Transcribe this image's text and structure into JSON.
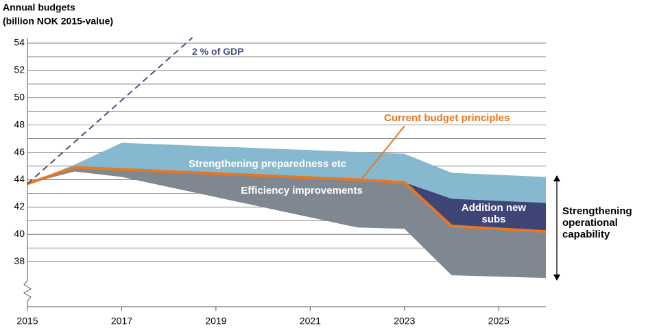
{
  "chart_data": {
    "type": "area",
    "title": "Annual budgets",
    "subtitle": "(billion NOK 2015-value)",
    "x": [
      2015,
      2016,
      2017,
      2018,
      2019,
      2020,
      2021,
      2022,
      2023,
      2024,
      2025,
      2026
    ],
    "xlim": [
      2015,
      2026
    ],
    "xticks": [
      2015,
      2017,
      2019,
      2021,
      2023,
      2025
    ],
    "ylim": [
      35,
      54
    ],
    "yticks": [
      38,
      40,
      42,
      44,
      46,
      48,
      50,
      52,
      54
    ],
    "minor_yticks": [
      39,
      41,
      43,
      45,
      47,
      49,
      51,
      53
    ],
    "grid": true,
    "series": [
      {
        "name": "Current budget principles",
        "kind": "line",
        "color": "#e87722",
        "values": [
          43.7,
          44.9,
          44.75,
          44.6,
          44.45,
          44.3,
          44.15,
          44.0,
          43.8,
          40.6,
          40.4,
          40.2
        ]
      },
      {
        "name": "Strengthening preparedness etc",
        "kind": "area",
        "color": "#86b8cf",
        "fill_to": [
          2,
          0
        ],
        "values": [
          43.7,
          45.1,
          46.7,
          46.57,
          46.43,
          46.3,
          46.17,
          46.03,
          45.9,
          44.5,
          44.35,
          44.2
        ]
      },
      {
        "name": "Addition new subs",
        "kind": "area",
        "color": "#3f4577",
        "fill_to": [
          0
        ],
        "values": [
          null,
          null,
          null,
          null,
          null,
          null,
          null,
          null,
          43.8,
          42.6,
          42.45,
          42.3
        ]
      },
      {
        "name": "Efficiency improvements",
        "kind": "area",
        "color": "#7f8890",
        "fill_to": [
          0
        ],
        "values": [
          43.7,
          44.6,
          44.2,
          43.46,
          42.72,
          41.98,
          41.24,
          40.5,
          40.4,
          37.0,
          36.9,
          36.8
        ]
      },
      {
        "name": "2 % of GDP",
        "kind": "dashed",
        "color": "#4a5080",
        "x": [
          2015,
          2018.5
        ],
        "values": [
          43.7,
          54.4
        ]
      }
    ],
    "annotations": [
      "Strengthening operational capability"
    ]
  }
}
